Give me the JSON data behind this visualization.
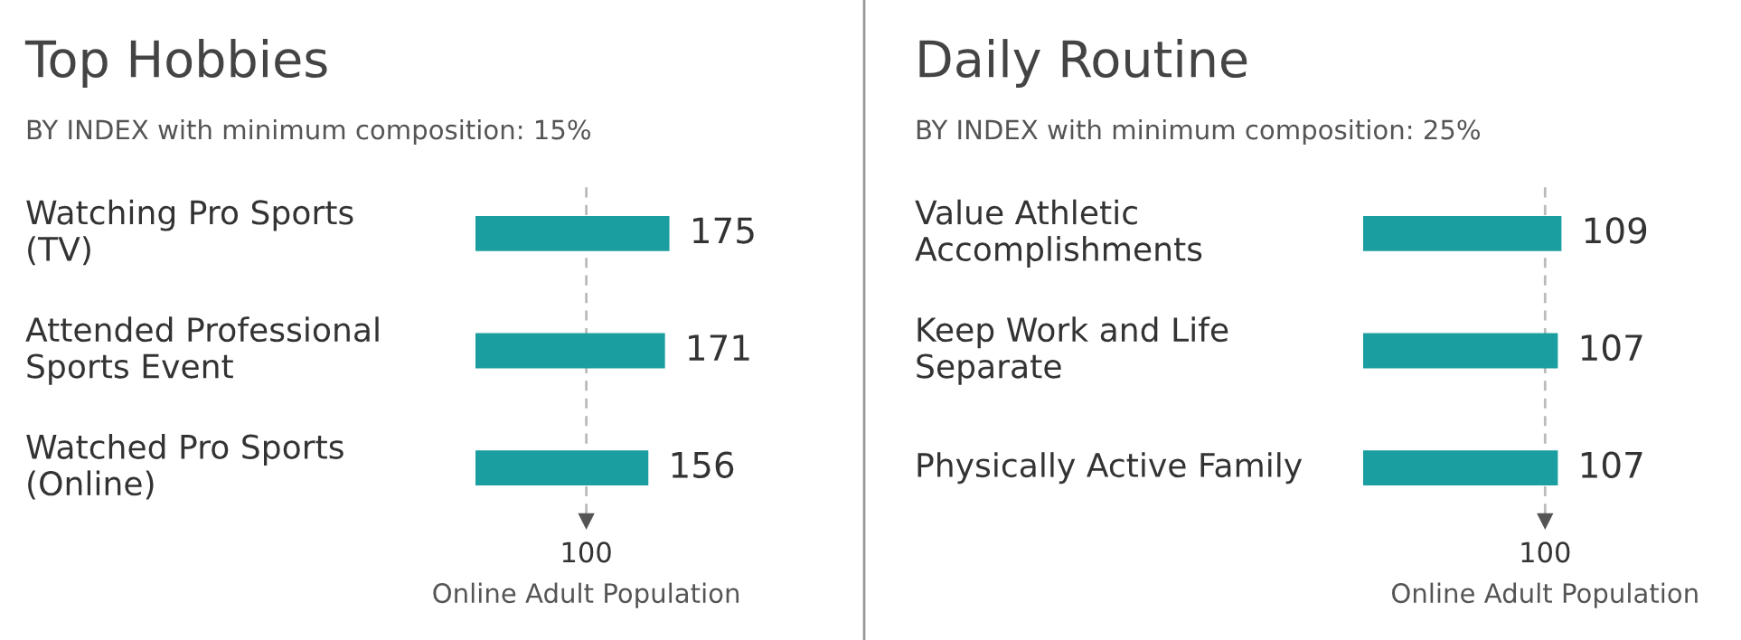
{
  "chart_data": [
    {
      "type": "bar",
      "orientation": "horizontal",
      "title": "Top Hobbies",
      "subtitle": "BY INDEX with minimum composition: 15%",
      "categories": [
        "Watching Pro Sports\n(TV)",
        "Attended Professional\nSports Event",
        "Watched Pro Sports\n(Online)"
      ],
      "values": [
        175,
        171,
        156
      ],
      "color": "#1a9ea0",
      "data_labels": true,
      "ref_lines": [
        {
          "axis": "x",
          "value": 100,
          "label": "100",
          "color": "#bbbbbb",
          "line_style": "dashed"
        }
      ],
      "annotations": [
        "Online Adult Population"
      ],
      "legend": false
    },
    {
      "type": "bar",
      "orientation": "horizontal",
      "title": "Daily Routine",
      "subtitle": "BY INDEX with minimum composition: 25%",
      "categories": [
        "Value Athletic\nAccomplishments",
        "Keep Work and Life\nSeparate",
        "Physically Active Family"
      ],
      "values": [
        109,
        107,
        107
      ],
      "color": "#1a9ea0",
      "data_labels": true,
      "ref_lines": [
        {
          "axis": "x",
          "value": 100,
          "label": "100",
          "color": "#bbbbbb",
          "line_style": "dashed"
        }
      ],
      "annotations": [
        "Online Adult Population"
      ],
      "legend": false
    }
  ]
}
